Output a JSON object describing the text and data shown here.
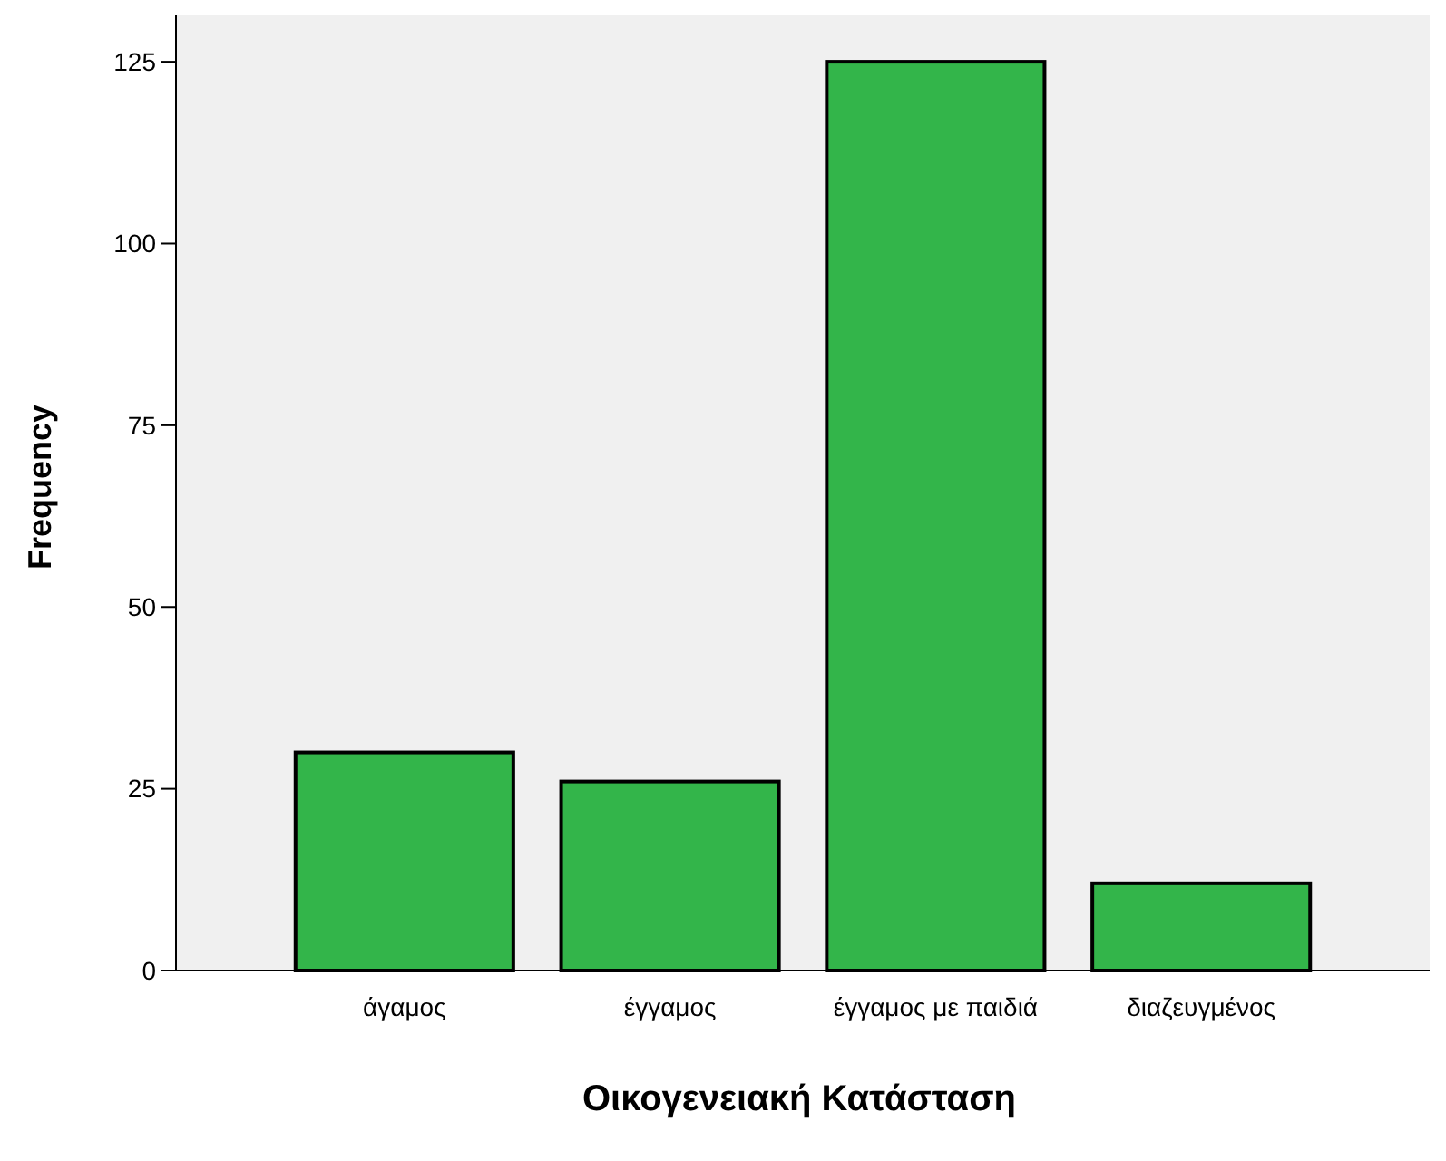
{
  "chart_data": {
    "type": "bar",
    "xlabel": "Οικογενειακή Κατάσταση",
    "ylabel": "Frequency",
    "categories": [
      "άγαμος",
      "έγγαμος",
      "έγγαμος με παιδιά",
      "διαζευγμένος"
    ],
    "values": [
      30,
      26,
      125,
      12
    ],
    "color": "#33b54a",
    "ylim": [
      0,
      131.5
    ],
    "yticks": [
      0,
      25,
      50,
      75,
      100,
      125
    ],
    "grid": false
  }
}
